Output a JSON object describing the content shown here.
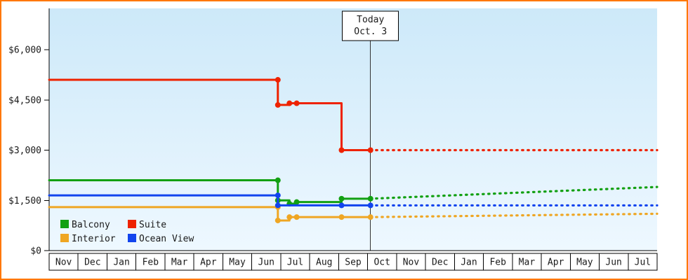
{
  "frame": {
    "border_color": "#ff7700",
    "background_color": "#ffffff"
  },
  "chart_data": {
    "type": "line",
    "style": "step-price-history",
    "plot": {
      "bg_gradient_top": "#cde9f9",
      "bg_gradient_bottom": "#eef8ff",
      "axis_color": "#000000",
      "text_color": "#1a1a1a"
    },
    "y_axis": {
      "min": 0,
      "max": 6250,
      "ticks": [
        {
          "label": "$0",
          "value": 0
        },
        {
          "label": "$1,500",
          "value": 1500
        },
        {
          "label": "$3,000",
          "value": 3000
        },
        {
          "label": "$4,500",
          "value": 4500
        },
        {
          "label": "$6,000",
          "value": 6000
        }
      ]
    },
    "x_axis": {
      "months": [
        "Nov",
        "Dec",
        "Jan",
        "Feb",
        "Mar",
        "Apr",
        "May",
        "Jun",
        "Jul",
        "Aug",
        "Sep",
        "Oct",
        "Nov",
        "Dec",
        "Jan",
        "Feb",
        "Mar",
        "Apr",
        "May",
        "Jun",
        "Jul"
      ]
    },
    "today_marker": {
      "title": "Today",
      "date": "Oct. 3",
      "month_x": 11.1,
      "line_color": "#333333"
    },
    "series": [
      {
        "name": "Suite",
        "color": "#ee2200",
        "solid_points": [
          [
            0,
            5100
          ],
          [
            7.9,
            5100
          ],
          [
            7.9,
            4350
          ],
          [
            8.3,
            4350
          ],
          [
            8.3,
            4400
          ],
          [
            10.1,
            4400
          ],
          [
            10.1,
            3000
          ],
          [
            11.1,
            3000
          ]
        ],
        "markers": [
          [
            7.9,
            5100
          ],
          [
            7.9,
            4350
          ],
          [
            8.3,
            4400
          ],
          [
            8.55,
            4400
          ],
          [
            10.1,
            3000
          ],
          [
            11.1,
            3000
          ]
        ],
        "forecast_points": [
          [
            11.1,
            3000
          ],
          [
            21,
            3000
          ]
        ]
      },
      {
        "name": "Balcony",
        "color": "#12a012",
        "solid_points": [
          [
            0,
            2100
          ],
          [
            7.9,
            2100
          ],
          [
            7.9,
            1500
          ],
          [
            8.3,
            1500
          ],
          [
            8.3,
            1400
          ],
          [
            8.55,
            1400
          ],
          [
            8.55,
            1450
          ],
          [
            10.1,
            1450
          ],
          [
            10.1,
            1550
          ],
          [
            11.1,
            1550
          ]
        ],
        "markers": [
          [
            7.9,
            2100
          ],
          [
            7.9,
            1500
          ],
          [
            8.3,
            1400
          ],
          [
            8.55,
            1450
          ],
          [
            10.1,
            1550
          ],
          [
            11.1,
            1550
          ]
        ],
        "forecast_points": [
          [
            11.1,
            1550
          ],
          [
            21,
            1900
          ]
        ]
      },
      {
        "name": "Interior",
        "color": "#efa623",
        "solid_points": [
          [
            0,
            1300
          ],
          [
            7.9,
            1300
          ],
          [
            7.9,
            900
          ],
          [
            8.3,
            900
          ],
          [
            8.3,
            1000
          ],
          [
            11.1,
            1000
          ]
        ],
        "markers": [
          [
            7.9,
            1300
          ],
          [
            7.9,
            900
          ],
          [
            8.3,
            1000
          ],
          [
            8.55,
            1000
          ],
          [
            10.1,
            1000
          ],
          [
            11.1,
            1000
          ]
        ],
        "forecast_points": [
          [
            11.1,
            1000
          ],
          [
            21,
            1100
          ]
        ]
      },
      {
        "name": "Ocean View",
        "color": "#1144ee",
        "solid_points": [
          [
            0,
            1650
          ],
          [
            7.9,
            1650
          ],
          [
            7.9,
            1350
          ],
          [
            11.1,
            1350
          ]
        ],
        "markers": [
          [
            7.9,
            1650
          ],
          [
            7.9,
            1350
          ],
          [
            10.1,
            1350
          ],
          [
            11.1,
            1350
          ]
        ],
        "forecast_points": [
          [
            11.1,
            1350
          ],
          [
            21,
            1350
          ]
        ]
      }
    ],
    "legend": {
      "position": "bottom-left",
      "items": [
        {
          "label": "Balcony",
          "color": "#12a012"
        },
        {
          "label": "Suite",
          "color": "#ee2200"
        },
        {
          "label": "Interior",
          "color": "#efa623"
        },
        {
          "label": "Ocean View",
          "color": "#1144ee"
        }
      ]
    }
  }
}
